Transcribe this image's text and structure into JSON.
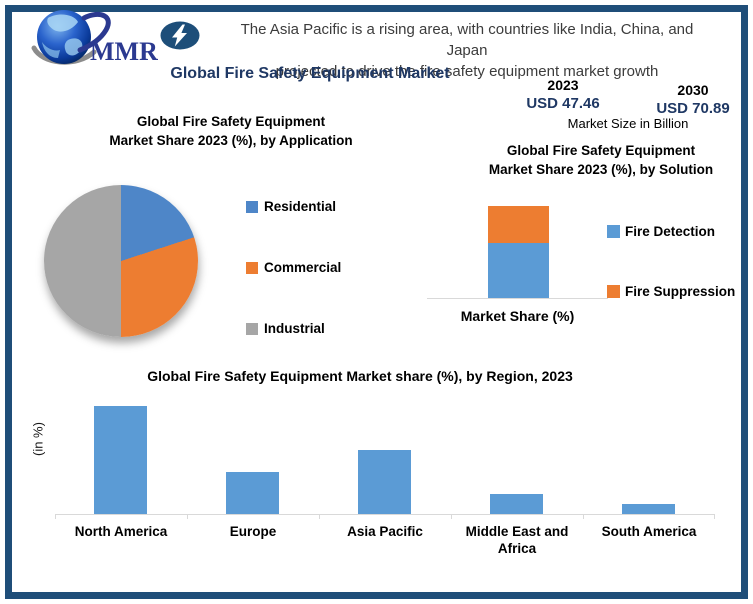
{
  "window": {
    "border_color": "#1F4E79"
  },
  "header": {
    "logo": {
      "text": "MMR",
      "icon": "globe-swoosh-logo"
    },
    "badge_icon": "lightning-bolt-icon",
    "banner": {
      "line1": "The Asia Pacific is a rising area, with countries like India, China, and Japan",
      "line2": "projected to drive the fire safety equipment market growth"
    },
    "title": "Global Fire Safety Equipment Market",
    "market_size": {
      "start_year": "2023",
      "start_value": "USD 47.46",
      "end_year": "2030",
      "end_value": "USD 70.89",
      "caption": "Market Size in Billion"
    }
  },
  "colors": {
    "border": "#1F4E79",
    "title_navy": "#1F3864",
    "bar_blue": "#5B9BD5",
    "pie_blue": "#4E86C8",
    "orange": "#ED7D31",
    "gray": "#A6A6A6",
    "axis_gray": "#D9D9D9"
  },
  "chart_data": [
    {
      "type": "pie",
      "title_line1": "Global Fire Safety Equipment",
      "title_line2": "Market Share 2023 (%), by Application",
      "categories": [
        "Residential",
        "Commercial",
        "Industrial"
      ],
      "values": [
        20,
        30,
        50
      ],
      "colors": [
        "#4E86C8",
        "#ED7D31",
        "#A6A6A6"
      ],
      "legend_position": "right",
      "start_angle_deg": 0
    },
    {
      "type": "bar",
      "stacked": true,
      "title_line1": "Global Fire Safety Equipment",
      "title_line2": "Market Share 2023 (%), by Solution",
      "categories": [
        ""
      ],
      "series": [
        {
          "name": "Fire Detection",
          "values": [
            60
          ],
          "color": "#5B9BD5"
        },
        {
          "name": "Fire Suppression",
          "values": [
            40
          ],
          "color": "#ED7D31"
        }
      ],
      "xlabel": "Market Share (%)",
      "ylim": [
        0,
        100
      ],
      "legend_position": "right",
      "gridlines": false
    },
    {
      "type": "bar",
      "title": "Global Fire Safety Equipment Market share (%), by Region, 2023",
      "categories": [
        "North America",
        "Europe",
        "Asia Pacific",
        "Middle East and Africa",
        "South America"
      ],
      "values": [
        44,
        17,
        26,
        8,
        4
      ],
      "ylabel": "(in %)",
      "ylim": [
        0,
        47
      ],
      "color": "#5B9BD5",
      "gridlines": false
    }
  ]
}
